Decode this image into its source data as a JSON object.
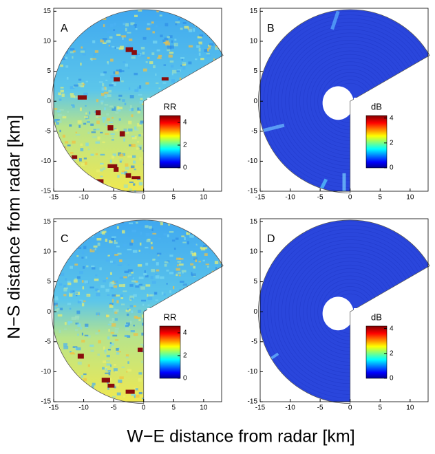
{
  "ylabel": "N−S distance from radar [km]",
  "xlabel": "W−E distance from radar [km]",
  "chart_data": [
    {
      "type": "radar-map",
      "panel_label": "A",
      "field": "rain",
      "xlim": [
        -15,
        13
      ],
      "ylim": [
        -15,
        15.5
      ],
      "xticks": [
        -15,
        -10,
        -5,
        0,
        5,
        10
      ],
      "yticks": [
        -15,
        -10,
        -5,
        0,
        5,
        10,
        15
      ],
      "colorbar": {
        "label": "RR",
        "lim": [
          0,
          4.6
        ],
        "ticks": [
          0,
          2,
          4
        ]
      }
    },
    {
      "type": "radar-map",
      "panel_label": "B",
      "field": "db",
      "xlim": [
        -15,
        13
      ],
      "ylim": [
        -15,
        15.5
      ],
      "xticks": [
        -15,
        -10,
        -5,
        0,
        5,
        10
      ],
      "yticks": [
        -15,
        -10,
        -5,
        0,
        5,
        10,
        15
      ],
      "colorbar": {
        "label": "dB",
        "lim": [
          0,
          4.2
        ],
        "ticks": [
          0,
          2,
          4
        ]
      }
    },
    {
      "type": "radar-map",
      "panel_label": "C",
      "field": "rain",
      "xlim": [
        -15,
        13
      ],
      "ylim": [
        -15,
        15.5
      ],
      "xticks": [
        -15,
        -10,
        -5,
        0,
        5,
        10
      ],
      "yticks": [
        -15,
        -10,
        -5,
        0,
        5,
        10,
        15
      ],
      "colorbar": {
        "label": "RR",
        "lim": [
          0,
          4.6
        ],
        "ticks": [
          0,
          2,
          4
        ]
      }
    },
    {
      "type": "radar-map",
      "panel_label": "D",
      "field": "db",
      "xlim": [
        -15,
        13
      ],
      "ylim": [
        -15,
        15.5
      ],
      "xticks": [
        -15,
        -10,
        -5,
        0,
        5,
        10
      ],
      "yticks": [
        -15,
        -10,
        -5,
        0,
        5,
        10,
        15
      ],
      "colorbar": {
        "label": "dB",
        "lim": [
          0,
          4.2
        ],
        "ticks": [
          0,
          2,
          4
        ]
      }
    }
  ]
}
